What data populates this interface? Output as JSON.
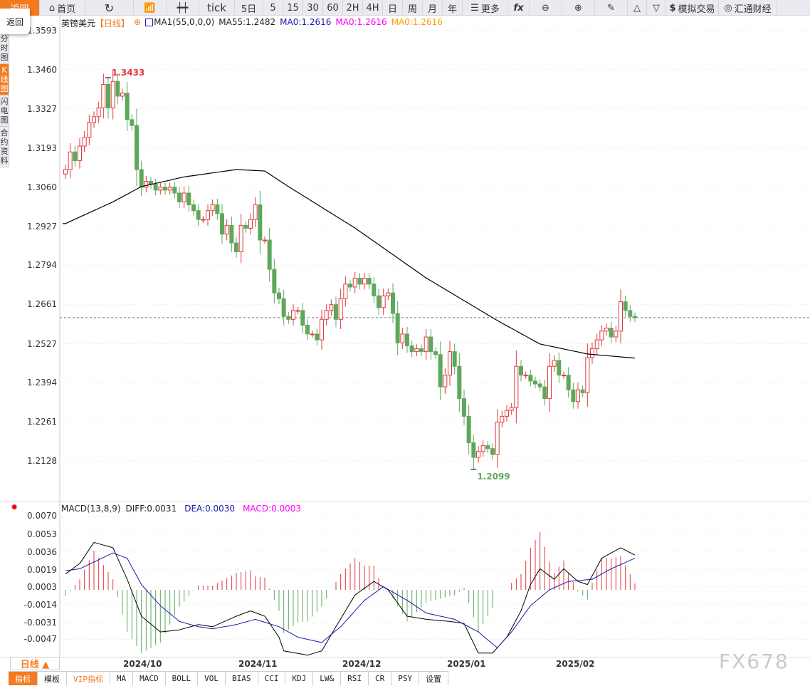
{
  "toolbar": {
    "back": "返回",
    "home": "首页",
    "tick": "tick",
    "items": [
      "5日",
      "5",
      "15",
      "30",
      "60",
      "2H",
      "4H",
      "日",
      "周",
      "月",
      "年"
    ],
    "more": "更多",
    "fx": "fx",
    "sim_trade": "模拟交易",
    "brand": "汇通财经"
  },
  "popup": {
    "back": "返回"
  },
  "sidebar": {
    "items": [
      "分时图",
      "K线图",
      "闪电图",
      "合约资料"
    ]
  },
  "legend": {
    "symbol": "英镑美元",
    "period": "【日线】",
    "ma1": "MA1(55,0,0,0)",
    "ma55": "MA55:1.2482",
    "ma0a": "MA0:1.2616",
    "ma0b": "MA0:1.2616",
    "ma0c": "MA0:1.2616"
  },
  "macd_legend": {
    "name": "MACD(13,8,9)",
    "diff": "DIFF:0.0031",
    "dea": "DEA:0.0030",
    "macd": "MACD:0.0003"
  },
  "period_button": "日线 ▲",
  "tabs": [
    "指标",
    "模板",
    "VIP指标",
    "MA",
    "MACD",
    "BOLL",
    "VOL",
    "BIAS",
    "CCI",
    "KDJ",
    "LW&",
    "RSI",
    "CR",
    "PSY",
    "设置"
  ],
  "watermark": "FX678",
  "colors": {
    "up": "#e0393e",
    "down": "#5ea85c",
    "ma55": "#000000",
    "diff": "#000000",
    "dea": "#1a1aa8",
    "accent": "#f47a20"
  },
  "chart_data": [
    {
      "type": "candlestick",
      "symbol": "英镑美元",
      "ylim": [
        1.2062,
        1.364
      ],
      "yticks": [
        "1.3593",
        "1.3460",
        "1.3327",
        "1.3193",
        "1.3060",
        "1.2927",
        "1.2794",
        "1.2661",
        "1.2527",
        "1.2394",
        "1.2261",
        "1.2128"
      ],
      "xticks": [
        "2024/10",
        "2024/11",
        "2024/12",
        "2025/01",
        "2025/02"
      ],
      "first_open": 1.3105,
      "close": [
        1.312,
        1.318,
        1.315,
        1.32,
        1.323,
        1.328,
        1.33,
        1.333,
        1.341,
        1.333,
        1.342,
        1.337,
        1.338,
        1.329,
        1.327,
        1.312,
        1.306,
        1.308,
        1.307,
        1.305,
        1.306,
        1.305,
        1.306,
        1.304,
        1.301,
        1.304,
        1.3,
        1.298,
        1.295,
        1.295,
        1.298,
        1.3,
        1.297,
        1.29,
        1.293,
        1.287,
        1.284,
        1.293,
        1.292,
        1.295,
        1.3,
        1.288,
        1.288,
        1.278,
        1.27,
        1.268,
        1.262,
        1.261,
        1.264,
        1.264,
        1.259,
        1.256,
        1.256,
        1.254,
        1.261,
        1.264,
        1.266,
        1.261,
        1.268,
        1.273,
        1.272,
        1.275,
        1.273,
        1.275,
        1.273,
        1.269,
        1.265,
        1.269,
        1.27,
        1.263,
        1.253,
        1.256,
        1.252,
        1.25,
        1.251,
        1.25,
        1.255,
        1.25,
        1.249,
        1.238,
        1.242,
        1.25,
        1.245,
        1.234,
        1.228,
        1.219,
        1.214,
        1.216,
        1.218,
        1.217,
        1.215,
        1.226,
        1.228,
        1.23,
        1.231,
        1.245,
        1.242,
        1.242,
        1.24,
        1.239,
        1.238,
        1.234,
        1.245,
        1.247,
        1.242,
        1.242,
        1.237,
        1.233,
        1.237,
        1.236,
        1.248,
        1.251,
        1.254,
        1.257,
        1.258,
        1.255,
        1.257,
        1.267,
        1.264,
        1.262,
        1.2615
      ],
      "ma55": [
        [
          0,
          1.2936
        ],
        [
          10,
          1.301
        ],
        [
          16,
          1.3062
        ],
        [
          25,
          1.3095
        ],
        [
          36,
          1.312
        ],
        [
          42,
          1.3115
        ],
        [
          47,
          1.3062
        ],
        [
          61,
          1.2921
        ],
        [
          76,
          1.2751
        ],
        [
          91,
          1.2606
        ],
        [
          100,
          1.2526
        ],
        [
          110,
          1.2492
        ],
        [
          120,
          1.2478
        ]
      ],
      "last_price": 1.2616,
      "annotations": [
        {
          "label": "1.3433",
          "value": 1.3433,
          "index": 9
        },
        {
          "label": "1.2099",
          "value": 1.2099,
          "index": 86
        }
      ]
    },
    {
      "type": "macd",
      "ylim": [
        -0.006,
        0.0082
      ],
      "yticks": [
        "0.0070",
        "0.0053",
        "0.0036",
        "0.0019",
        "0.0003",
        "-0.0014",
        "-0.0031",
        "-0.0047"
      ],
      "diff": [
        [
          0,
          0.0015
        ],
        [
          3,
          0.0025
        ],
        [
          6,
          0.0045
        ],
        [
          10,
          0.004
        ],
        [
          13,
          0.001
        ],
        [
          16,
          -0.0025
        ],
        [
          20,
          -0.004
        ],
        [
          24,
          -0.0038
        ],
        [
          28,
          -0.0033
        ],
        [
          31,
          -0.0035
        ],
        [
          36,
          -0.0025
        ],
        [
          39,
          -0.002
        ],
        [
          42,
          -0.0025
        ],
        [
          45,
          -0.0045
        ],
        [
          46,
          -0.0058
        ],
        [
          51,
          -0.0062
        ],
        [
          54,
          -0.0058
        ],
        [
          57,
          -0.0035
        ],
        [
          61,
          -0.0005
        ],
        [
          65,
          0.0008
        ],
        [
          68,
          0.0
        ],
        [
          72,
          -0.0025
        ],
        [
          76,
          -0.0028
        ],
        [
          81,
          -0.003
        ],
        [
          84,
          -0.0032
        ],
        [
          87,
          -0.006
        ],
        [
          90,
          -0.006
        ],
        [
          93,
          -0.0045
        ],
        [
          96,
          -0.002
        ],
        [
          98,
          0.0005
        ],
        [
          100,
          0.002
        ],
        [
          103,
          0.001
        ],
        [
          105,
          0.002
        ],
        [
          108,
          0.0008
        ],
        [
          110,
          0.0005
        ],
        [
          113,
          0.003
        ],
        [
          117,
          0.004
        ],
        [
          120,
          0.0033
        ]
      ],
      "dea": [
        [
          0,
          0.0018
        ],
        [
          3,
          0.002
        ],
        [
          10,
          0.0035
        ],
        [
          13,
          0.003
        ],
        [
          16,
          0.0005
        ],
        [
          20,
          -0.0015
        ],
        [
          24,
          -0.003
        ],
        [
          28,
          -0.0035
        ],
        [
          31,
          -0.0037
        ],
        [
          36,
          -0.0033
        ],
        [
          40,
          -0.0028
        ],
        [
          45,
          -0.0035
        ],
        [
          49,
          -0.0045
        ],
        [
          54,
          -0.005
        ],
        [
          58,
          -0.0035
        ],
        [
          63,
          -0.001
        ],
        [
          67,
          0.0003
        ],
        [
          72,
          -0.001
        ],
        [
          76,
          -0.0022
        ],
        [
          82,
          -0.0028
        ],
        [
          87,
          -0.004
        ],
        [
          91,
          -0.0055
        ],
        [
          94,
          -0.004
        ],
        [
          98,
          -0.0015
        ],
        [
          102,
          0.0
        ],
        [
          106,
          0.0008
        ],
        [
          111,
          0.001
        ],
        [
          115,
          0.002
        ],
        [
          120,
          0.003
        ]
      ]
    }
  ]
}
